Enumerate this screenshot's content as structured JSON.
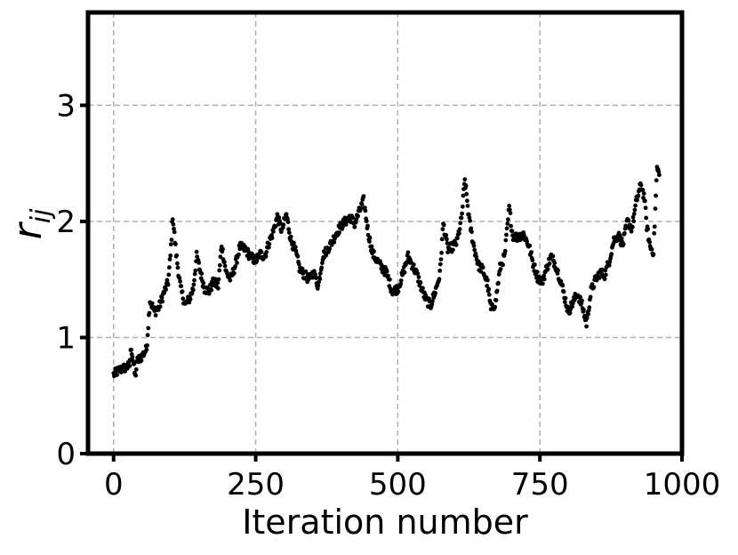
{
  "chart_data": {
    "type": "scatter",
    "xlabel": "Iteration number",
    "ylabel_main": "r",
    "ylabel_sub": "ij",
    "xlim": [
      -45,
      1000
    ],
    "ylim": [
      0,
      3.8
    ],
    "xticks": [
      0,
      250,
      500,
      750,
      1000
    ],
    "xtick_labels": [
      "0",
      "250",
      "500",
      "750",
      "1000"
    ],
    "yticks": [
      0,
      1,
      2,
      3
    ],
    "ytick_labels": [
      "0",
      "1",
      "2",
      "3"
    ],
    "grid": true,
    "marker_color": "#000000",
    "grid_color": "#b0b0b0",
    "anchors": [
      [
        0,
        0.68
      ],
      [
        10,
        0.72
      ],
      [
        20,
        0.74
      ],
      [
        28,
        0.76
      ],
      [
        31,
        0.92
      ],
      [
        38,
        0.66
      ],
      [
        42,
        0.8
      ],
      [
        50,
        0.84
      ],
      [
        58,
        0.9
      ],
      [
        64,
        1.32
      ],
      [
        72,
        1.22
      ],
      [
        80,
        1.26
      ],
      [
        88,
        1.38
      ],
      [
        96,
        1.48
      ],
      [
        100,
        1.7
      ],
      [
        104,
        2.05
      ],
      [
        110,
        1.72
      ],
      [
        118,
        1.42
      ],
      [
        126,
        1.28
      ],
      [
        134,
        1.34
      ],
      [
        140,
        1.42
      ],
      [
        146,
        1.7
      ],
      [
        152,
        1.58
      ],
      [
        160,
        1.42
      ],
      [
        168,
        1.4
      ],
      [
        176,
        1.48
      ],
      [
        184,
        1.44
      ],
      [
        190,
        1.8
      ],
      [
        198,
        1.56
      ],
      [
        206,
        1.5
      ],
      [
        214,
        1.62
      ],
      [
        222,
        1.78
      ],
      [
        232,
        1.76
      ],
      [
        240,
        1.7
      ],
      [
        250,
        1.66
      ],
      [
        258,
        1.72
      ],
      [
        266,
        1.7
      ],
      [
        272,
        1.8
      ],
      [
        280,
        1.9
      ],
      [
        288,
        2.04
      ],
      [
        296,
        1.92
      ],
      [
        304,
        2.06
      ],
      [
        312,
        1.84
      ],
      [
        320,
        1.74
      ],
      [
        328,
        1.58
      ],
      [
        336,
        1.54
      ],
      [
        344,
        1.5
      ],
      [
        352,
        1.56
      ],
      [
        360,
        1.44
      ],
      [
        368,
        1.7
      ],
      [
        376,
        1.76
      ],
      [
        384,
        1.82
      ],
      [
        392,
        1.9
      ],
      [
        400,
        1.96
      ],
      [
        408,
        2.0
      ],
      [
        416,
        2.04
      ],
      [
        424,
        1.98
      ],
      [
        432,
        2.08
      ],
      [
        440,
        2.18
      ],
      [
        448,
        1.9
      ],
      [
        456,
        1.72
      ],
      [
        464,
        1.66
      ],
      [
        472,
        1.6
      ],
      [
        480,
        1.56
      ],
      [
        490,
        1.4
      ],
      [
        500,
        1.42
      ],
      [
        510,
        1.56
      ],
      [
        518,
        1.7
      ],
      [
        526,
        1.62
      ],
      [
        534,
        1.54
      ],
      [
        542,
        1.42
      ],
      [
        550,
        1.32
      ],
      [
        558,
        1.28
      ],
      [
        566,
        1.4
      ],
      [
        574,
        1.54
      ],
      [
        580,
        1.98
      ],
      [
        588,
        1.76
      ],
      [
        596,
        1.78
      ],
      [
        604,
        1.82
      ],
      [
        612,
        2.02
      ],
      [
        618,
        2.36
      ],
      [
        626,
        2.0
      ],
      [
        634,
        1.78
      ],
      [
        642,
        1.62
      ],
      [
        650,
        1.58
      ],
      [
        658,
        1.46
      ],
      [
        664,
        1.24
      ],
      [
        672,
        1.3
      ],
      [
        680,
        1.6
      ],
      [
        688,
        1.7
      ],
      [
        696,
        2.12
      ],
      [
        702,
        1.88
      ],
      [
        712,
        1.86
      ],
      [
        720,
        1.9
      ],
      [
        730,
        1.8
      ],
      [
        738,
        1.64
      ],
      [
        746,
        1.52
      ],
      [
        754,
        1.48
      ],
      [
        762,
        1.6
      ],
      [
        770,
        1.7
      ],
      [
        778,
        1.62
      ],
      [
        786,
        1.5
      ],
      [
        794,
        1.34
      ],
      [
        800,
        1.22
      ],
      [
        808,
        1.3
      ],
      [
        816,
        1.38
      ],
      [
        824,
        1.28
      ],
      [
        832,
        1.12
      ],
      [
        840,
        1.4
      ],
      [
        848,
        1.5
      ],
      [
        856,
        1.56
      ],
      [
        864,
        1.54
      ],
      [
        872,
        1.66
      ],
      [
        880,
        1.84
      ],
      [
        888,
        1.88
      ],
      [
        896,
        1.8
      ],
      [
        904,
        2.0
      ],
      [
        912,
        1.94
      ],
      [
        920,
        2.18
      ],
      [
        928,
        2.32
      ],
      [
        934,
        2.2
      ],
      [
        938,
        1.96
      ],
      [
        944,
        1.78
      ],
      [
        950,
        1.74
      ],
      [
        956,
        2.46
      ],
      [
        960,
        2.4
      ]
    ],
    "points_per_iteration": 1
  }
}
